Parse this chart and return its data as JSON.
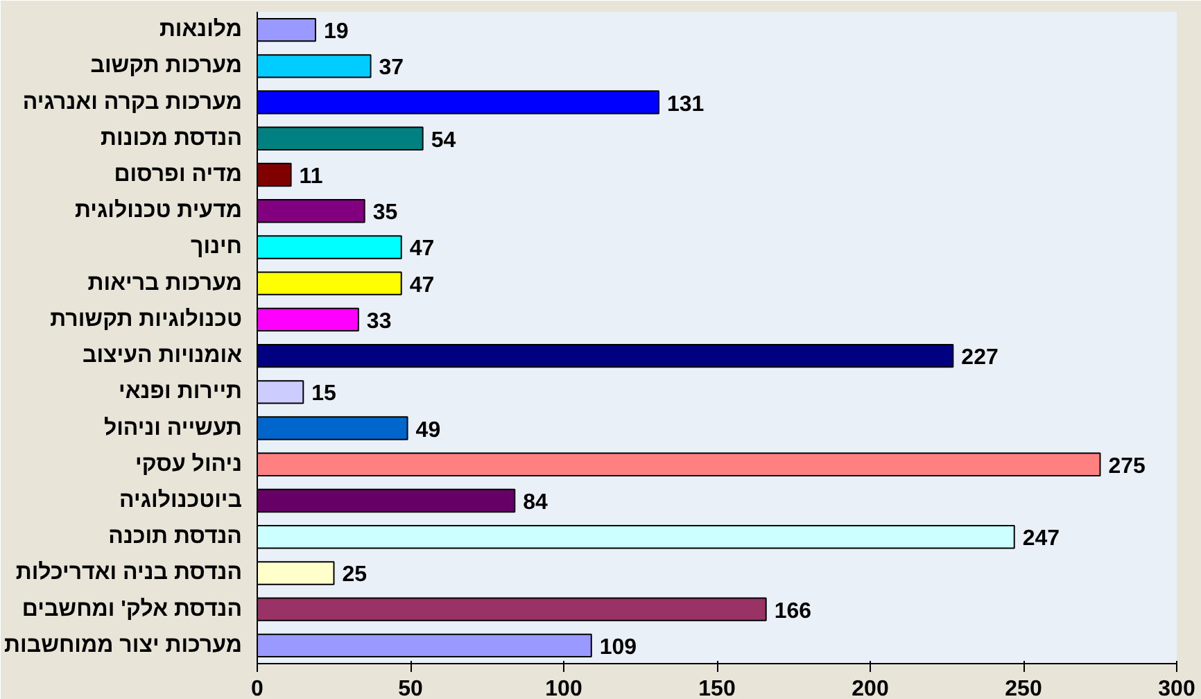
{
  "chart_data": {
    "type": "bar",
    "orientation": "horizontal",
    "categories": [
      "מלונאות",
      "מערכות תקשוב",
      "מערכות בקרה ואנרגיה",
      "הנדסת מכונות",
      "מדיה ופרסום",
      "מדעית טכנולוגית",
      "חינוך",
      "מערכות בריאות",
      "טכנולוגיות תקשורת",
      "אומנויות העיצוב",
      "תיירות ופנאי",
      "תעשייה וניהול",
      "ניהול עסקי",
      "ביוטכנולוגיה",
      "הנדסת תוכנה",
      "הנדסת בניה ואדריכלות",
      "הנדסת אלק' ומחשבים",
      "מערכות יצור ממוחשבות"
    ],
    "values": [
      19,
      37,
      131,
      54,
      11,
      35,
      47,
      47,
      33,
      227,
      15,
      49,
      275,
      84,
      247,
      25,
      166,
      109
    ],
    "colors": [
      "#9999ff",
      "#00ccff",
      "#0000ff",
      "#008080",
      "#800000",
      "#800080",
      "#00ffff",
      "#ffff00",
      "#ff00ff",
      "#000080",
      "#ccccff",
      "#0066cc",
      "#ff8080",
      "#660066",
      "#ccffff",
      "#ffffcc",
      "#993366",
      "#9999ff"
    ],
    "xlim": [
      0,
      300
    ],
    "xticks": [
      0,
      50,
      100,
      150,
      200,
      250,
      300
    ],
    "data_labels": true,
    "grid": false
  }
}
